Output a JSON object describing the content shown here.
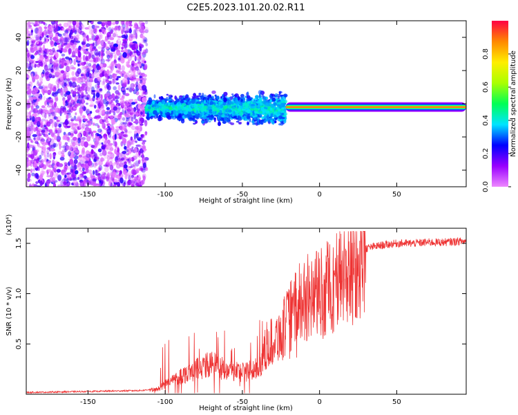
{
  "title": "C2E5.2023.101.20.02.R11",
  "chart_data": [
    {
      "type": "heatmap",
      "xlabel": "Height of straight line (km)",
      "ylabel": "Frequency (Hz)",
      "xlim": [
        -190,
        95
      ],
      "ylim": [
        -50,
        50
      ],
      "xticks": [
        -150,
        -100,
        -50,
        0,
        50
      ],
      "yticks": [
        -40,
        -20,
        0,
        20,
        40
      ],
      "colorbar": {
        "label": "Normalized spectral amplitude",
        "range": [
          0,
          1
        ],
        "ticks": [
          "0.0",
          "0.2",
          "0.4",
          "0.6",
          "0.8"
        ],
        "colors": [
          "#ee88ff",
          "#9900ff",
          "#0000ff",
          "#00e5ff",
          "#00ff55",
          "#aaff00",
          "#ffee00",
          "#ff8800",
          "#ff0044"
        ]
      },
      "regions": [
        {
          "x": [
            -190,
            -112
          ],
          "freq_center": 0,
          "freq_spread": 50,
          "amplitude": "low",
          "pattern": "scattered noise"
        },
        {
          "x": [
            -112,
            -22
          ],
          "freq_center": -3,
          "freq_spread": 8,
          "amplitude": "medium",
          "pattern": "broad band"
        },
        {
          "x": [
            -22,
            95
          ],
          "freq_center": -2,
          "freq_spread": 2,
          "amplitude": "high",
          "pattern": "narrow line"
        }
      ]
    },
    {
      "type": "line",
      "xlabel": "Height of straight line (km)",
      "ylabel": "SNR (10 * v/v)",
      "yscale_note": "(x10⁴)",
      "xlim": [
        -190,
        95
      ],
      "ylim": [
        0,
        1.65
      ],
      "xticks": [
        -150,
        -100,
        -50,
        0,
        50
      ],
      "yticks": [
        "0.5",
        "1.0",
        "1.5"
      ],
      "color": "#ee3333",
      "series": [
        {
          "x": [
            -190,
            -150,
            -115,
            -105,
            -100,
            -90,
            -80,
            -70,
            -60,
            -50,
            -40,
            -35,
            -30,
            -25,
            -20,
            -15,
            -10,
            -5,
            0,
            5,
            10,
            15,
            20,
            25,
            30,
            40,
            50,
            60,
            70,
            80,
            90,
            95
          ],
          "y": [
            0.01,
            0.02,
            0.03,
            0.05,
            0.1,
            0.18,
            0.25,
            0.3,
            0.25,
            0.22,
            0.25,
            0.45,
            0.55,
            0.6,
            0.75,
            0.85,
            0.95,
            0.95,
            1.0,
            1.05,
            1.1,
            1.2,
            1.25,
            1.35,
            1.45,
            1.48,
            1.5,
            1.5,
            1.51,
            1.51,
            1.52,
            1.52
          ]
        }
      ]
    }
  ]
}
